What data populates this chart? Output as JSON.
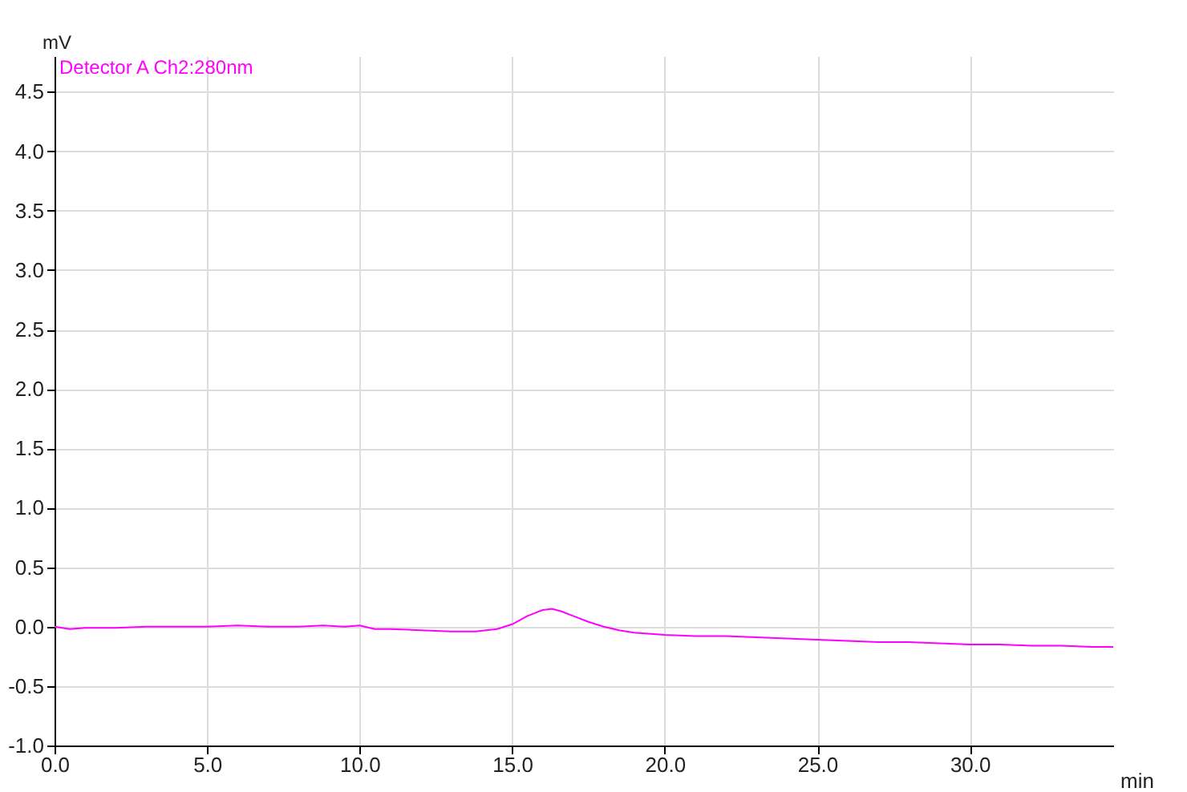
{
  "chart_data": {
    "type": "line",
    "xlabel": "min",
    "ylabel": "mV",
    "x": [
      0,
      0.5,
      1,
      2,
      3,
      4,
      5,
      6,
      7,
      8,
      8.8,
      9.5,
      10,
      10.5,
      11,
      12,
      13,
      13.8,
      14.5,
      15,
      15.5,
      16,
      16.3,
      16.6,
      17,
      17.5,
      18,
      18.5,
      19,
      20,
      21,
      22,
      23,
      24,
      25,
      26,
      27,
      28,
      29,
      30,
      31,
      32,
      33,
      34,
      34.7
    ],
    "series": [
      {
        "name": "Detector A Ch2:280nm",
        "color": "#ff00ff",
        "values": [
          0.0,
          -0.02,
          -0.01,
          -0.01,
          0.0,
          0.0,
          0.0,
          0.01,
          0.0,
          0.0,
          0.01,
          0.0,
          0.01,
          -0.02,
          -0.02,
          -0.03,
          -0.04,
          -0.04,
          -0.02,
          0.02,
          0.09,
          0.14,
          0.15,
          0.13,
          0.09,
          0.04,
          0.0,
          -0.03,
          -0.05,
          -0.07,
          -0.08,
          -0.08,
          -0.09,
          -0.1,
          -0.11,
          -0.12,
          -0.13,
          -0.13,
          -0.14,
          -0.15,
          -0.15,
          -0.16,
          -0.16,
          -0.17,
          -0.17
        ]
      }
    ],
    "xlim": [
      0,
      34.7
    ],
    "ylim": [
      -1.0,
      4.8
    ],
    "xticks": [
      {
        "value": 0,
        "label": "0.0"
      },
      {
        "value": 5,
        "label": "5.0"
      },
      {
        "value": 10,
        "label": "10.0"
      },
      {
        "value": 15,
        "label": "15.0"
      },
      {
        "value": 20,
        "label": "20.0"
      },
      {
        "value": 25,
        "label": "25.0"
      },
      {
        "value": 30,
        "label": "30.0"
      }
    ],
    "yticks": [
      {
        "value": -1,
        "label": "-1.0"
      },
      {
        "value": -0.5,
        "label": "-0.5"
      },
      {
        "value": 0,
        "label": "0.0"
      },
      {
        "value": 0.5,
        "label": "0.5"
      },
      {
        "value": 1,
        "label": "1.0"
      },
      {
        "value": 1.5,
        "label": "1.5"
      },
      {
        "value": 2,
        "label": "2.0"
      },
      {
        "value": 2.5,
        "label": "2.5"
      },
      {
        "value": 3,
        "label": "3.0"
      },
      {
        "value": 3.5,
        "label": "3.5"
      },
      {
        "value": 4,
        "label": "4.0"
      },
      {
        "value": 4.5,
        "label": "4.5"
      }
    ],
    "grid": true,
    "legend": "top left",
    "marker": "none",
    "line_style": "solid"
  }
}
